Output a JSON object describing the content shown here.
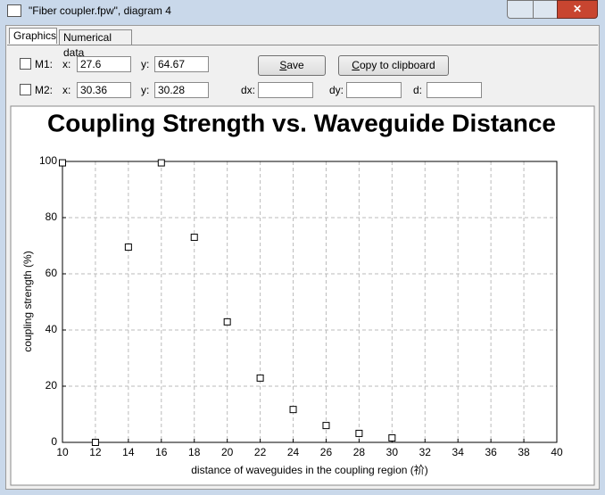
{
  "window": {
    "title": "\"Fiber coupler.fpw\", diagram 4"
  },
  "tabs": [
    "Graphics",
    "Numerical data"
  ],
  "markers": [
    {
      "label": "M1:",
      "x_label": "x:",
      "x": 27.6,
      "y_label": "y:",
      "y": 64.67
    },
    {
      "label": "M2:",
      "x_label": "x:",
      "x": 30.36,
      "y_label": "y:",
      "y": 30.28
    }
  ],
  "buttons": [
    "Save",
    "Copy to clipboard"
  ],
  "delta_labels": [
    "dx:",
    "dy:",
    "d:"
  ],
  "chart_data": {
    "type": "scatter",
    "title": "Coupling Strength vs. Waveguide Distance",
    "x_label": "distance of waveguides in the coupling region (祄)",
    "y_label": "coupling strength (%)",
    "x": [
      10,
      12,
      14,
      16,
      18,
      20,
      22,
      24,
      26,
      28,
      30
    ],
    "values": [
      99.5,
      0,
      69.5,
      99.5,
      73,
      42.9,
      22.9,
      11.7,
      6,
      3.2,
      1.6
    ],
    "color": "#000000",
    "xlim": [
      10,
      40
    ],
    "ylim": [
      0,
      100
    ],
    "xticks": [
      10,
      12,
      14,
      16,
      18,
      20,
      22,
      24,
      26,
      28,
      30,
      32,
      34,
      36,
      38,
      40
    ],
    "yticks": [
      0,
      20,
      40,
      60,
      80,
      100
    ],
    "grid": true
  }
}
